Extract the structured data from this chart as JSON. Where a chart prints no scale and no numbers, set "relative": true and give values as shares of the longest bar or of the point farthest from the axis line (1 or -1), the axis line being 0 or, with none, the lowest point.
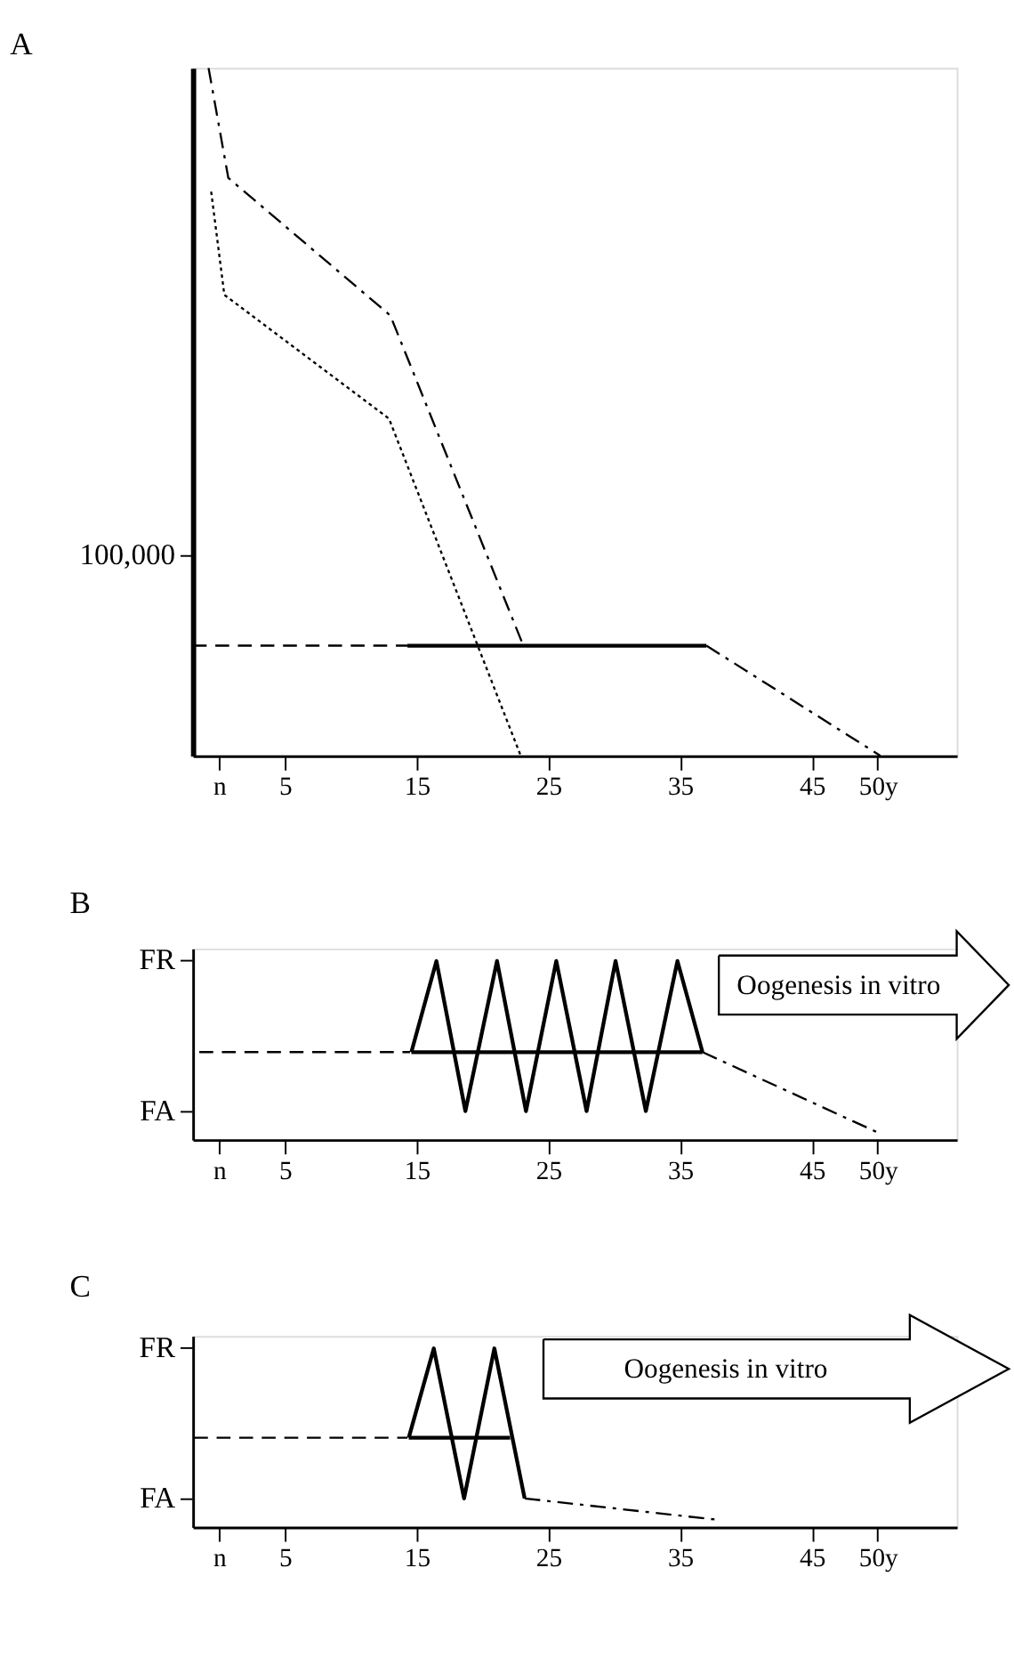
{
  "chart_data": [
    {
      "type": "line",
      "title": "A",
      "relative": true,
      "grid": false,
      "xlim": [
        -2,
        56
      ],
      "xticks": [
        {
          "value": 0,
          "label": "n"
        },
        5,
        15,
        25,
        35,
        45,
        {
          "value": 50,
          "label": "50y"
        }
      ],
      "annotations": [
        "100,000"
      ],
      "series": [
        {
          "color": "#000000",
          "line_style": "dashdot",
          "x": [
            -0.8,
            0.7,
            13,
            23.1
          ],
          "values": [
            1.0,
            0.84,
            0.64,
            0.16
          ]
        },
        {
          "color": "#000000",
          "line_style": "dotted",
          "x": [
            -0.6,
            0.4,
            12.9,
            22.9
          ],
          "values": [
            0.82,
            0.67,
            0.49,
            0
          ]
        },
        {
          "color": "#000000",
          "line_style": "dashed",
          "x": [
            -2,
            14.3
          ],
          "values": [
            0.16,
            0.16
          ]
        },
        {
          "color": "#000000",
          "line_style": "solid",
          "x": [
            14.3,
            37
          ],
          "values": [
            0.16,
            0.16
          ]
        },
        {
          "color": "#000000",
          "line_style": "dashdot",
          "x": [
            37,
            50.2
          ],
          "values": [
            0.16,
            0
          ]
        }
      ]
    },
    {
      "type": "line",
      "title": "B",
      "relative": true,
      "grid": false,
      "xlim": [
        -2,
        56
      ],
      "xticks": [
        {
          "value": 0,
          "label": "n"
        },
        5,
        15,
        25,
        35,
        45,
        {
          "value": 50,
          "label": "50y"
        }
      ],
      "annotations": [
        "FR",
        "FA",
        "Oogenesis in vitro"
      ],
      "series": [
        {
          "color": "#000000",
          "line_style": "dashed",
          "x": [
            -1.5,
            14.5
          ],
          "values": [
            0.49,
            0.49
          ]
        },
        {
          "color": "#000000",
          "line_style": "solid",
          "x": [
            14.6,
            36.7
          ],
          "values": [
            0.49,
            0.49
          ]
        },
        {
          "color": "#000000",
          "line_style": "solid",
          "x": [
            14.6,
            16.5,
            18.7,
            21.1,
            23.3,
            25.6,
            27.9,
            30.1,
            32.4,
            34.8,
            36.7
          ],
          "values": [
            0.49,
            1,
            0.16,
            1,
            0.16,
            1,
            0.16,
            1,
            0.16,
            1,
            0.49
          ]
        },
        {
          "color": "#000000",
          "line_style": "dashdot",
          "x": [
            36.7,
            50
          ],
          "values": [
            0.49,
            0.04
          ]
        }
      ]
    },
    {
      "type": "line",
      "title": "C",
      "relative": true,
      "grid": false,
      "xlim": [
        -2,
        56
      ],
      "xticks": [
        {
          "value": 0,
          "label": "n"
        },
        5,
        15,
        25,
        35,
        45,
        {
          "value": 50,
          "label": "50y"
        }
      ],
      "annotations": [
        "FR",
        "FA",
        "Oogenesis in vitro"
      ],
      "series": [
        {
          "color": "#000000",
          "line_style": "dashed",
          "x": [
            -1.9,
            14.3
          ],
          "values": [
            0.5,
            0.5
          ]
        },
        {
          "color": "#000000",
          "line_style": "solid",
          "x": [
            14.4,
            22.1
          ],
          "values": [
            0.5,
            0.5
          ]
        },
        {
          "color": "#000000",
          "line_style": "solid",
          "x": [
            14.4,
            16.3,
            18.6,
            20.9,
            23.2
          ],
          "values": [
            0.5,
            1,
            0.16,
            1,
            0.16
          ]
        },
        {
          "color": "#000000",
          "line_style": "dashdot",
          "x": [
            23.2,
            37.9
          ],
          "values": [
            0.16,
            0.04
          ]
        }
      ]
    }
  ]
}
